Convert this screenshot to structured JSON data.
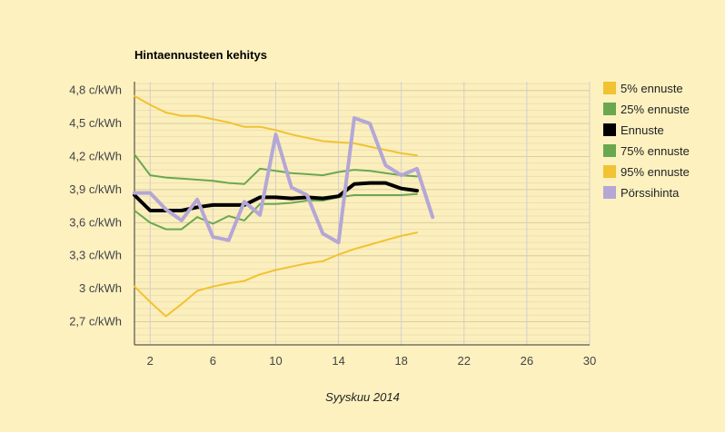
{
  "chart_data": {
    "type": "line",
    "title": "Hintaennusteen kehitys",
    "xlabel": "Syyskuu 2014",
    "ylabel": "",
    "xlim": [
      1,
      30
    ],
    "ylim": [
      2.49,
      4.88
    ],
    "x_ticks": [
      2,
      6,
      10,
      14,
      18,
      22,
      26,
      30
    ],
    "x_tick_labels": [
      "2",
      "6",
      "10",
      "14",
      "18",
      "22",
      "26",
      "30"
    ],
    "y_ticks": [
      2.7,
      3.0,
      3.3,
      3.6,
      3.9,
      4.2,
      4.5,
      4.8
    ],
    "y_tick_labels": [
      "2,7 c/kWh",
      "3 c/kWh",
      "3,3 c/kWh",
      "3,6 c/kWh",
      "3,9 c/kWh",
      "4,2 c/kWh",
      "4,5 c/kWh",
      "4,8 c/kWh"
    ],
    "grid": true,
    "legend_position": "right",
    "series": [
      {
        "name": "5% ennuste",
        "color": "#f1c232",
        "x": [
          1,
          2,
          3,
          4,
          5,
          6,
          7,
          8,
          9,
          10,
          11,
          12,
          13,
          14,
          15,
          16,
          17,
          18,
          19
        ],
        "values": [
          3.02,
          2.88,
          2.75,
          2.86,
          2.98,
          3.02,
          3.05,
          3.07,
          3.13,
          3.17,
          3.2,
          3.23,
          3.25,
          3.31,
          3.36,
          3.4,
          3.44,
          3.48,
          3.51
        ]
      },
      {
        "name": "25% ennuste",
        "color": "#6aa84f",
        "x": [
          1,
          2,
          3,
          4,
          5,
          6,
          7,
          8,
          9,
          10,
          11,
          12,
          13,
          14,
          15,
          16,
          17,
          18,
          19
        ],
        "values": [
          3.71,
          3.6,
          3.54,
          3.54,
          3.65,
          3.59,
          3.66,
          3.62,
          3.77,
          3.77,
          3.78,
          3.8,
          3.8,
          3.83,
          3.85,
          3.85,
          3.85,
          3.85,
          3.86
        ]
      },
      {
        "name": "Ennuste",
        "color": "#000000",
        "x": [
          1,
          2,
          3,
          4,
          5,
          6,
          7,
          8,
          9,
          10,
          11,
          12,
          13,
          14,
          15,
          16,
          17,
          18,
          19
        ],
        "values": [
          3.85,
          3.71,
          3.71,
          3.71,
          3.74,
          3.76,
          3.76,
          3.76,
          3.83,
          3.83,
          3.82,
          3.83,
          3.82,
          3.84,
          3.95,
          3.96,
          3.96,
          3.91,
          3.89
        ]
      },
      {
        "name": "75% ennuste",
        "color": "#6aa84f",
        "x": [
          1,
          2,
          3,
          4,
          5,
          6,
          7,
          8,
          9,
          10,
          11,
          12,
          13,
          14,
          15,
          16,
          17,
          18,
          19
        ],
        "values": [
          4.22,
          4.03,
          4.01,
          4.0,
          3.99,
          3.98,
          3.96,
          3.95,
          4.09,
          4.07,
          4.05,
          4.04,
          4.03,
          4.06,
          4.08,
          4.07,
          4.05,
          4.03,
          4.02
        ]
      },
      {
        "name": "95% ennuste",
        "color": "#f1c232",
        "x": [
          1,
          2,
          3,
          4,
          5,
          6,
          7,
          8,
          9,
          10,
          11,
          12,
          13,
          14,
          15,
          16,
          17,
          18,
          19
        ],
        "values": [
          4.75,
          4.67,
          4.6,
          4.57,
          4.57,
          4.54,
          4.51,
          4.47,
          4.47,
          4.44,
          4.4,
          4.37,
          4.34,
          4.33,
          4.32,
          4.29,
          4.26,
          4.23,
          4.21
        ]
      },
      {
        "name": "Pörssihinta",
        "color": "#b4a7d6",
        "x": [
          1,
          2,
          3,
          4,
          5,
          6,
          7,
          8,
          9,
          10,
          11,
          12,
          13,
          14,
          15,
          16,
          17,
          18,
          19,
          20
        ],
        "values": [
          3.87,
          3.87,
          3.72,
          3.62,
          3.81,
          3.47,
          3.44,
          3.79,
          3.67,
          4.4,
          3.92,
          3.85,
          3.5,
          3.42,
          4.55,
          4.5,
          4.12,
          4.03,
          4.09,
          3.65
        ]
      }
    ]
  }
}
